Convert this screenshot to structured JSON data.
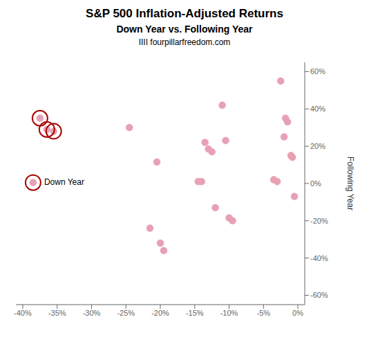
{
  "chart_data": {
    "type": "scatter",
    "title": "S&P 500 Inflation-Adjusted Returns",
    "subtitle": "Down Year vs. Following Year",
    "source": "IIII fourpillarfreedom.com",
    "y_label": "Following Year",
    "xlim": [
      -41,
      1
    ],
    "ylim": [
      -65,
      65
    ],
    "xticks": [
      {
        "value": -40,
        "label": "-40%"
      },
      {
        "value": -35,
        "label": "-35%"
      },
      {
        "value": -30,
        "label": "-30%"
      },
      {
        "value": -25,
        "label": "-25%"
      },
      {
        "value": -20,
        "label": "-20%"
      },
      {
        "value": -15,
        "label": "-15%"
      },
      {
        "value": -10,
        "label": "-10%"
      },
      {
        "value": -5,
        "label": "-5%"
      },
      {
        "value": 0,
        "label": "0%"
      }
    ],
    "yticks": [
      {
        "value": -60,
        "label": "-60%"
      },
      {
        "value": -40,
        "label": "-40%"
      },
      {
        "value": -20,
        "label": "-20%"
      },
      {
        "value": 0,
        "label": "0%"
      },
      {
        "value": 20,
        "label": "20%"
      },
      {
        "value": 40,
        "label": "40%"
      },
      {
        "value": 60,
        "label": "60%"
      }
    ],
    "grid": false,
    "series": [
      {
        "color": "#e8a0b4",
        "marker": "circle",
        "x": [
          -38.5,
          -37.5,
          -36.5,
          -35.5,
          -24.5,
          -21.5,
          -20.5,
          -20.0,
          -19.5,
          -14.5,
          -14.0,
          -13.5,
          -13.0,
          -12.5,
          -12.0,
          -11.0,
          -10.5,
          -10.0,
          -9.5,
          -3.5,
          -3.0,
          -2.5,
          -2.0,
          -1.8,
          -1.5,
          -1.0,
          -0.8,
          -0.5
        ],
        "values": [
          0.5,
          35.0,
          29.0,
          28.0,
          30.0,
          -24.0,
          11.5,
          -32.0,
          -36.0,
          1.0,
          1.0,
          22.0,
          18.5,
          17.0,
          -13.0,
          42.0,
          23.0,
          -18.5,
          -20.0,
          2.0,
          1.0,
          55.0,
          25.0,
          35.0,
          33.0,
          15.0,
          14.0,
          -7.0
        ]
      },
      {
        "color": "#aa0000",
        "marker": "ring",
        "x": [
          -38.5,
          -37.5,
          -36.5,
          -35.5
        ],
        "values": [
          0.5,
          35.0,
          29.0,
          28.0
        ]
      }
    ],
    "annotations": [
      {
        "text": "Down Year",
        "x": -38.5,
        "y": 0.5
      }
    ]
  }
}
